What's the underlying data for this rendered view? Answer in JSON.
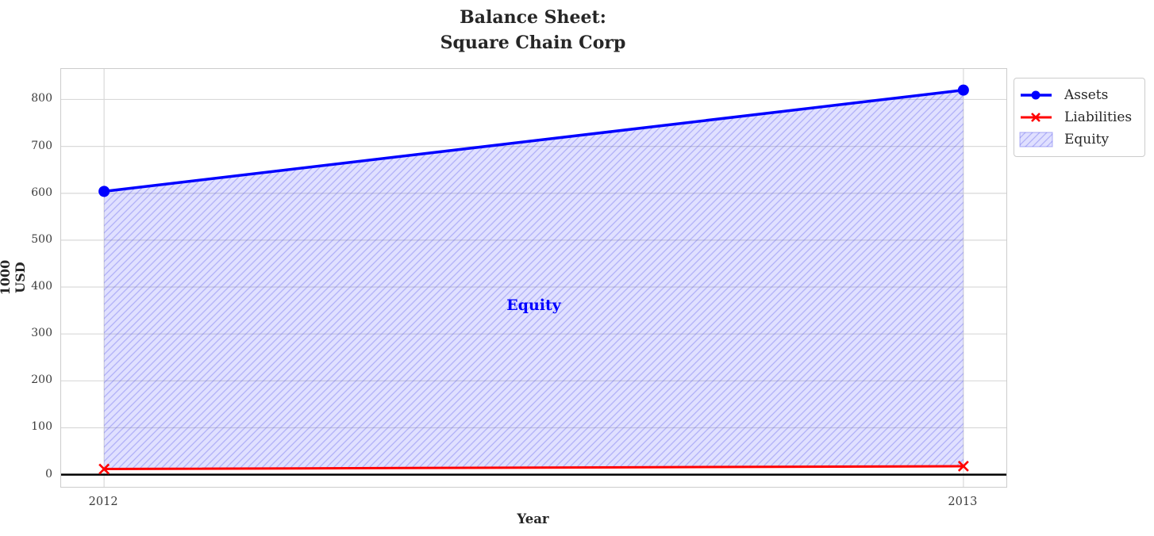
{
  "figure": {
    "title": "Balance Sheet:\nSquare Chain Corp",
    "xlabel": "Year",
    "ylabel": "1000 USD"
  },
  "annotation": {
    "text": "Equity",
    "color": "#0000ff"
  },
  "legend": {
    "items": [
      {
        "label": "Assets",
        "color": "#0000ff",
        "marker": "circle",
        "kind": "line"
      },
      {
        "label": "Liabilities",
        "color": "#ff0000",
        "marker": "x",
        "kind": "line"
      },
      {
        "label": "Equity",
        "color": "#0000ff",
        "kind": "hatched-patch"
      }
    ]
  },
  "chart_data": {
    "type": "area",
    "title": "Balance Sheet:\nSquare Chain Corp",
    "xlabel": "Year",
    "ylabel": "1000 USD",
    "x": [
      2012,
      2013
    ],
    "xticks": [
      "2012",
      "2013"
    ],
    "yticks": [
      0,
      100,
      200,
      300,
      400,
      500,
      600,
      700,
      800
    ],
    "xlim": [
      2011.95,
      2013.05
    ],
    "ylim": [
      -26,
      865
    ],
    "grid": true,
    "zero_line": true,
    "legend_position": "outside upper right",
    "series": [
      {
        "name": "Assets",
        "values": [
          604,
          820
        ],
        "color": "#0000ff",
        "marker": "circle",
        "linewidth": 3.5
      },
      {
        "name": "Liabilities",
        "values": [
          12,
          18
        ],
        "color": "#ff0000",
        "marker": "x",
        "linewidth": 3
      }
    ],
    "fill_between": {
      "name": "Equity",
      "upper_series": "Assets",
      "lower_series": "Liabilities",
      "upper_values": [
        604,
        820
      ],
      "lower_values": [
        12,
        18
      ],
      "fill_color": "rgba(0,0,255,0.12)",
      "hatch": "/",
      "hatch_color": "rgba(50,50,225,0.28)"
    },
    "annotation": {
      "text": "Equity",
      "x": 2012.5,
      "y": 360,
      "color": "#0000ff"
    }
  }
}
